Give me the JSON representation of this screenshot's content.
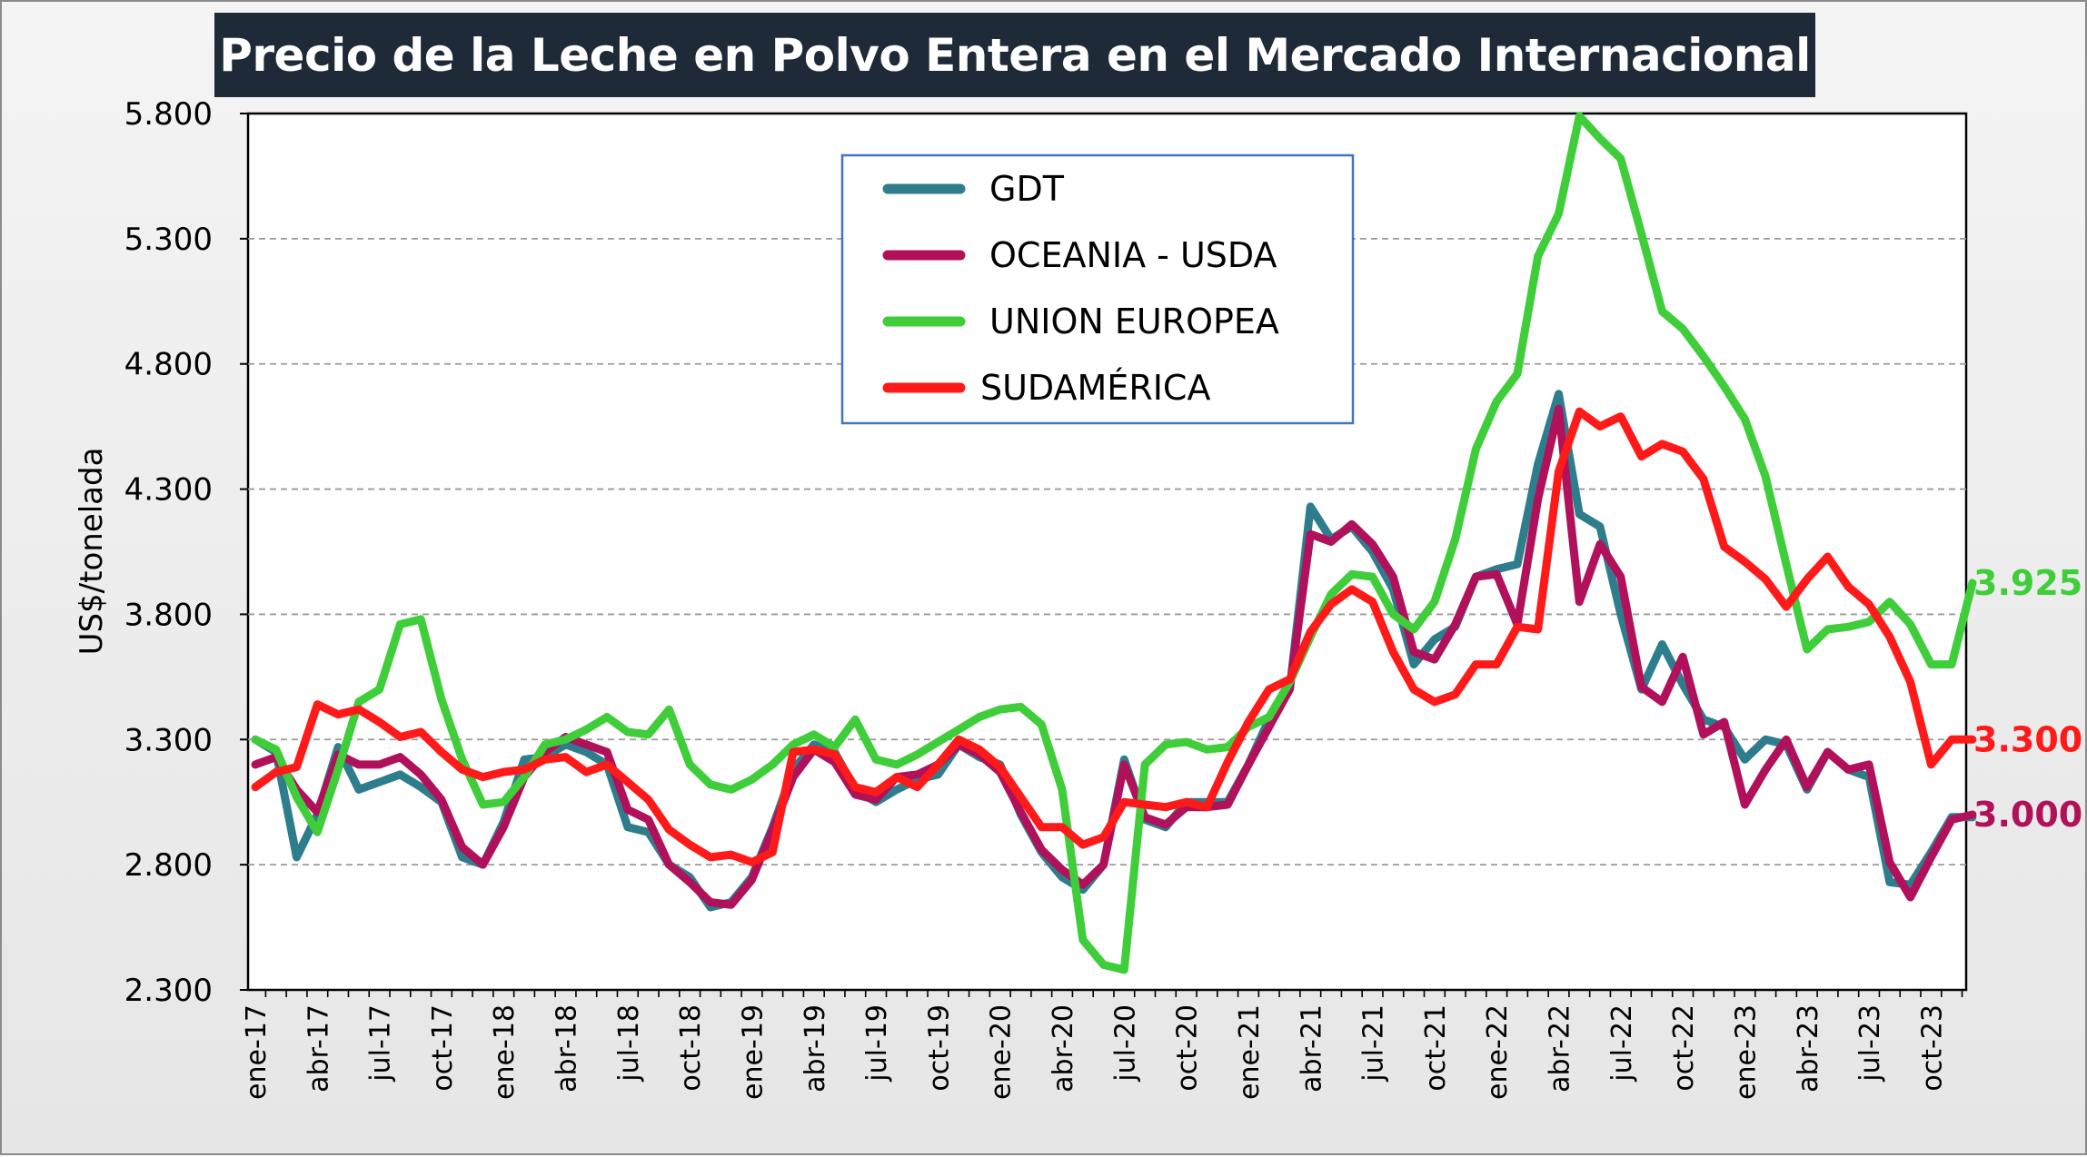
{
  "chart_data": {
    "type": "line",
    "title": "Precio de la Leche en Polvo Entera en el Mercado Internacional",
    "ylabel": "US$/tonelada",
    "xlabel": "",
    "ylim": [
      2300,
      5800
    ],
    "yticks": [
      "2.300",
      "2.800",
      "3.300",
      "3.800",
      "4.300",
      "4.800",
      "5.300",
      "5.800"
    ],
    "grid": "horizontal dashed",
    "legend_position": "top-center",
    "x_tick_labels": [
      "ene-17",
      "abr-17",
      "jul-17",
      "oct-17",
      "ene-18",
      "abr-18",
      "jul-18",
      "oct-18",
      "ene-19",
      "abr-19",
      "jul-19",
      "oct-19",
      "ene-20",
      "abr-20",
      "jul-20",
      "oct-20",
      "ene-21",
      "abr-21",
      "jul-21",
      "oct-21",
      "ene-22",
      "abr-22",
      "jul-22",
      "oct-22",
      "ene-23",
      "abr-23",
      "jul-23",
      "oct-23"
    ],
    "start_month": "ene-17",
    "series": [
      {
        "name": "GDT",
        "color": "#2e7d8c",
        "values": [
          3300,
          3250,
          2830,
          3000,
          3270,
          3100,
          3130,
          3160,
          3110,
          3050,
          2830,
          2800,
          2970,
          3220,
          3230,
          3280,
          3250,
          3200,
          2950,
          2930,
          2800,
          2750,
          2630,
          2650,
          2750,
          2950,
          3180,
          3280,
          3250,
          3100,
          3050,
          3100,
          3140,
          3160,
          3280,
          3230,
          3200,
          3000,
          2850,
          2750,
          2700,
          2800,
          3220,
          2980,
          2950,
          3050,
          3050,
          3050,
          3200,
          3380,
          3500,
          4230,
          4100,
          4150,
          4050,
          3900,
          3600,
          3700,
          3750,
          3950,
          3980,
          4000,
          4400,
          4680,
          4200,
          4150,
          3800,
          3500,
          3680,
          3520,
          3380,
          3350,
          3220,
          3300,
          3280,
          3100,
          3250,
          3180,
          3150,
          2730,
          2720,
          2850,
          2990,
          2990
        ],
        "end_label": ""
      },
      {
        "name": "OCEANIA - USDA",
        "color": "#b0115a",
        "values": [
          3200,
          3230,
          3100,
          3010,
          3240,
          3200,
          3200,
          3230,
          3160,
          3060,
          2870,
          2800,
          2950,
          3150,
          3250,
          3310,
          3280,
          3250,
          3020,
          2980,
          2800,
          2730,
          2650,
          2640,
          2740,
          2940,
          3150,
          3260,
          3210,
          3080,
          3060,
          3150,
          3160,
          3200,
          3280,
          3240,
          3170,
          3010,
          2860,
          2780,
          2720,
          2800,
          3200,
          2990,
          2960,
          3030,
          3030,
          3040,
          3200,
          3350,
          3500,
          4120,
          4090,
          4160,
          4080,
          3950,
          3650,
          3620,
          3760,
          3950,
          3960,
          3760,
          4260,
          4620,
          3850,
          4080,
          3950,
          3510,
          3450,
          3630,
          3320,
          3370,
          3040,
          3180,
          3300,
          3110,
          3250,
          3180,
          3200,
          2810,
          2670,
          2830,
          2980,
          3000
        ],
        "end_label": "3.000"
      },
      {
        "name": "UNION EUROPEA",
        "color": "#3fce3a",
        "values": [
          3300,
          3260,
          3070,
          2930,
          3180,
          3450,
          3500,
          3760,
          3780,
          3460,
          3220,
          3040,
          3050,
          3150,
          3280,
          3300,
          3340,
          3390,
          3330,
          3320,
          3420,
          3200,
          3120,
          3100,
          3140,
          3200,
          3280,
          3320,
          3270,
          3380,
          3220,
          3200,
          3240,
          3290,
          3340,
          3390,
          3420,
          3430,
          3360,
          3100,
          2500,
          2400,
          2380,
          3200,
          3280,
          3290,
          3260,
          3270,
          3350,
          3390,
          3530,
          3710,
          3880,
          3960,
          3950,
          3800,
          3740,
          3850,
          4100,
          4460,
          4650,
          4760,
          5230,
          5400,
          5790,
          5700,
          5620,
          5320,
          5010,
          4940,
          4830,
          4710,
          4580,
          4350,
          4000,
          3660,
          3740,
          3750,
          3770,
          3850,
          3760,
          3600,
          3600,
          3925
        ],
        "end_label": "3.925"
      },
      {
        "name": "SUDAMÉRICA",
        "color": "#ff1a1a",
        "values": [
          3110,
          3170,
          3190,
          3440,
          3400,
          3420,
          3370,
          3310,
          3330,
          3250,
          3180,
          3150,
          3170,
          3180,
          3220,
          3230,
          3170,
          3200,
          3130,
          3060,
          2940,
          2880,
          2830,
          2840,
          2810,
          2850,
          3250,
          3260,
          3240,
          3110,
          3090,
          3150,
          3110,
          3200,
          3300,
          3260,
          3190,
          3070,
          2950,
          2950,
          2880,
          2910,
          3050,
          3040,
          3030,
          3050,
          3030,
          3210,
          3370,
          3500,
          3540,
          3730,
          3840,
          3900,
          3850,
          3650,
          3500,
          3450,
          3480,
          3600,
          3600,
          3750,
          3740,
          4370,
          4610,
          4550,
          4590,
          4430,
          4480,
          4450,
          4340,
          4070,
          4010,
          3940,
          3830,
          3940,
          4030,
          3910,
          3840,
          3710,
          3530,
          3200,
          3300,
          3300
        ],
        "end_label": "3.300"
      }
    ]
  }
}
